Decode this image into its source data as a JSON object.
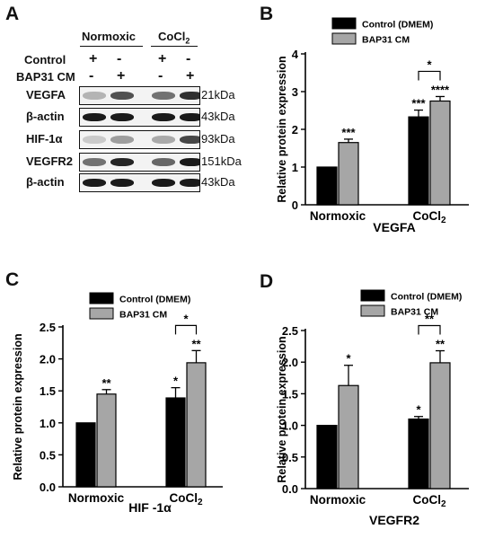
{
  "panel_labels": {
    "a": "A",
    "b": "B",
    "c": "C",
    "d": "D"
  },
  "blot": {
    "conditions": [
      "Normoxic",
      "CoCl2"
    ],
    "treatments": [
      {
        "label": "Control",
        "signs": [
          "+",
          "-",
          "+",
          "-"
        ]
      },
      {
        "label": "BAP31 CM",
        "signs": [
          "-",
          "+",
          "-",
          "+"
        ]
      }
    ],
    "rows": [
      {
        "protein": "VEGFA",
        "size": "21kDa",
        "intensity": [
          0.25,
          0.7,
          0.55,
          0.85
        ]
      },
      {
        "protein": "β-actin",
        "size": "43kDa",
        "intensity": [
          0.95,
          0.95,
          0.95,
          0.95
        ]
      },
      {
        "protein": "HIF-1α",
        "size": "93kDa",
        "intensity": [
          0.15,
          0.35,
          0.3,
          0.75
        ]
      },
      {
        "protein": "VEGFR2",
        "size": "151kDa",
        "intensity": [
          0.55,
          0.9,
          0.6,
          0.95
        ]
      },
      {
        "protein": "β-actin",
        "size": "43kDa",
        "intensity": [
          0.95,
          0.95,
          0.95,
          0.95
        ]
      }
    ]
  },
  "colors": {
    "control": "#000000",
    "bap31": "#a6a6a6"
  },
  "chart_data": [
    {
      "panel": "B",
      "type": "bar",
      "categories": [
        "Normoxic",
        "CoCl2"
      ],
      "series": [
        {
          "name": "Control (DMEM)",
          "values": [
            1.0,
            2.33
          ],
          "errors": [
            0,
            0.18
          ]
        },
        {
          "name": "BAP31 CM",
          "values": [
            1.65,
            2.75
          ],
          "errors": [
            0.09,
            0.12
          ]
        }
      ],
      "sig_labels": [
        [
          "",
          "***"
        ],
        [
          "***",
          "****"
        ]
      ],
      "bracket": {
        "category": 1,
        "label": "*"
      },
      "title": "",
      "xlabel": "VEGFA",
      "ylabel": "Relative protein  expression",
      "ylim": [
        0,
        4
      ],
      "yticks": [
        0,
        1,
        2,
        3,
        4
      ],
      "legend": "top"
    },
    {
      "panel": "C",
      "type": "bar",
      "categories": [
        "Normoxic",
        "CoCl2"
      ],
      "series": [
        {
          "name": "Control (DMEM)",
          "values": [
            1.0,
            1.39
          ],
          "errors": [
            0,
            0.16
          ]
        },
        {
          "name": "BAP31 CM",
          "values": [
            1.45,
            1.94
          ],
          "errors": [
            0.07,
            0.19
          ]
        }
      ],
      "sig_labels": [
        [
          "",
          "*"
        ],
        [
          "**",
          "**"
        ]
      ],
      "bracket": {
        "category": 1,
        "label": "*"
      },
      "title": "",
      "xlabel": "HIF -1α",
      "ylabel": "Relative protein  expression",
      "ylim": [
        0,
        2.5
      ],
      "yticks": [
        "0.0",
        "0.5",
        "1.0",
        "1.5",
        "2.0",
        "2.5"
      ],
      "legend": "top"
    },
    {
      "panel": "D",
      "type": "bar",
      "categories": [
        "Normoxic",
        "CoCl2"
      ],
      "series": [
        {
          "name": "Control (DMEM)",
          "values": [
            1.0,
            1.1
          ],
          "errors": [
            0,
            0.04
          ]
        },
        {
          "name": "BAP31 CM",
          "values": [
            1.63,
            1.99
          ],
          "errors": [
            0.32,
            0.19
          ]
        }
      ],
      "sig_labels": [
        [
          "",
          "*"
        ],
        [
          "*",
          "**"
        ]
      ],
      "bracket": {
        "category": 1,
        "label": "**"
      },
      "title": "",
      "xlabel": "VEGFR2",
      "ylabel": "Relative protein  expression",
      "ylim": [
        0,
        2.5
      ],
      "yticks": [
        "0.0",
        "0.5",
        "1.0",
        "1.5",
        "2.0",
        "2.5"
      ],
      "legend": "top"
    }
  ]
}
